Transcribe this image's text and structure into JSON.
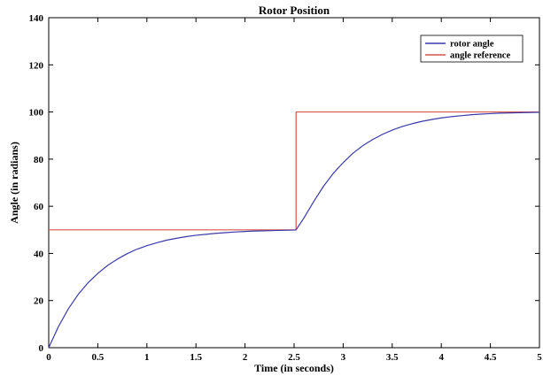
{
  "chart_data": {
    "type": "line",
    "title": "Rotor Position",
    "xlabel": "Time (in seconds)",
    "ylabel": "Angle (in radians)",
    "xlim": [
      0,
      5
    ],
    "ylim": [
      0,
      140
    ],
    "xticks": [
      "0",
      "0.5",
      "1",
      "1.5",
      "2",
      "2.5",
      "3",
      "3.5",
      "4",
      "4.5",
      "5"
    ],
    "yticks": [
      "0",
      "20",
      "40",
      "60",
      "80",
      "100",
      "120",
      "140"
    ],
    "grid": false,
    "legend_position": "top-right",
    "series": [
      {
        "name": "rotor angle",
        "color": "#3a3aa8",
        "x": [
          0,
          0.1,
          0.2,
          0.3,
          0.4,
          0.5,
          0.6,
          0.7,
          0.8,
          0.9,
          1.0,
          1.1,
          1.2,
          1.3,
          1.4,
          1.5,
          1.6,
          1.7,
          1.8,
          1.9,
          2.0,
          2.1,
          2.2,
          2.3,
          2.4,
          2.5,
          2.52,
          2.6,
          2.7,
          2.8,
          2.9,
          3.0,
          3.1,
          3.2,
          3.3,
          3.4,
          3.5,
          3.6,
          3.7,
          3.8,
          3.9,
          4.0,
          4.1,
          4.2,
          4.3,
          4.4,
          4.5,
          4.6,
          4.7,
          4.8,
          4.9,
          5.0
        ],
        "y": [
          0,
          9,
          16.5,
          22.6,
          27.5,
          31.5,
          34.9,
          37.6,
          39.9,
          41.8,
          43.3,
          44.5,
          45.6,
          46.4,
          47.1,
          47.7,
          48.1,
          48.5,
          48.8,
          49.1,
          49.3,
          49.5,
          49.6,
          49.7,
          49.8,
          49.9,
          50,
          55,
          62,
          68.5,
          74,
          78.5,
          82.5,
          85.7,
          88.3,
          90.5,
          92.3,
          93.8,
          95,
          96,
          96.8,
          97.5,
          98,
          98.4,
          98.8,
          99.1,
          99.3,
          99.5,
          99.6,
          99.7,
          99.8,
          99.9
        ]
      },
      {
        "name": "angle reference",
        "color": "#d9534f",
        "x": [
          0,
          2.52,
          2.52,
          5
        ],
        "y": [
          50,
          50,
          100,
          100
        ]
      }
    ]
  }
}
